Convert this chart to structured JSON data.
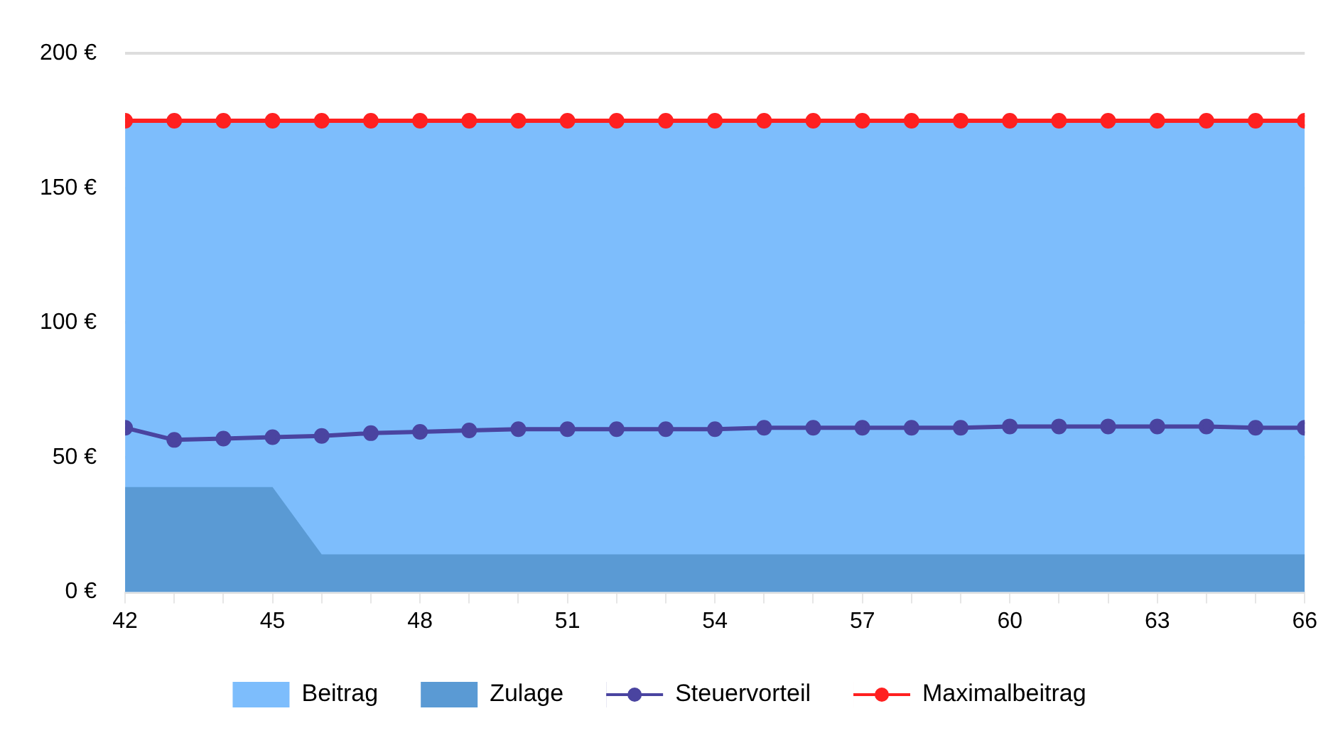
{
  "chart_data": {
    "type": "area",
    "x": [
      42,
      43,
      44,
      45,
      46,
      47,
      48,
      49,
      50,
      51,
      52,
      53,
      54,
      55,
      56,
      57,
      58,
      59,
      60,
      61,
      62,
      63,
      64,
      65,
      66
    ],
    "series": [
      {
        "name": "Beitrag",
        "marker": "none",
        "color": "#7dbdfc",
        "values": [
          175,
          175,
          175,
          175,
          175,
          175,
          175,
          175,
          175,
          175,
          175,
          175,
          175,
          175,
          175,
          175,
          175,
          175,
          175,
          175,
          175,
          175,
          175,
          175,
          175
        ]
      },
      {
        "name": "Zulage",
        "marker": "none",
        "color": "#5a9ad4",
        "values": [
          39,
          39,
          39,
          39,
          14,
          14,
          14,
          14,
          14,
          14,
          14,
          14,
          14,
          14,
          14,
          14,
          14,
          14,
          14,
          14,
          14,
          14,
          14,
          14,
          14
        ]
      },
      {
        "name": "Steuervorteil",
        "type": "line",
        "color": "#4a44a0",
        "values": [
          61,
          56.5,
          57,
          57.5,
          58,
          59,
          59.5,
          60,
          60.5,
          60.5,
          60.5,
          60.5,
          60.5,
          61,
          61,
          61,
          61,
          61,
          61.5,
          61.5,
          61.5,
          61.5,
          61.5,
          61,
          61
        ]
      },
      {
        "name": "Maximalbeitrag",
        "type": "line",
        "color": "#ff2020",
        "values": [
          175,
          175,
          175,
          175,
          175,
          175,
          175,
          175,
          175,
          175,
          175,
          175,
          175,
          175,
          175,
          175,
          175,
          175,
          175,
          175,
          175,
          175,
          175,
          175,
          175
        ]
      }
    ],
    "xlim": [
      42,
      66
    ],
    "xticks": [
      42,
      {
        "value": 43,
        "label": null
      },
      {
        "value": 44,
        "label": null
      },
      45,
      {
        "value": 46,
        "label": null
      },
      {
        "value": 47,
        "label": null
      },
      48,
      {
        "value": 49,
        "label": null
      },
      {
        "value": 50,
        "label": null
      },
      51,
      {
        "value": 52,
        "label": null
      },
      {
        "value": 53,
        "label": null
      },
      54,
      {
        "value": 55,
        "label": null
      },
      {
        "value": 56,
        "label": null
      },
      57,
      {
        "value": 58,
        "label": null
      },
      {
        "value": 59,
        "label": null
      },
      60,
      {
        "value": 61,
        "label": null
      },
      {
        "value": 62,
        "label": null
      },
      63,
      {
        "value": 64,
        "label": null
      },
      {
        "value": 65,
        "label": null
      },
      66
    ],
    "ylim": [
      0,
      200
    ],
    "yticks": [
      {
        "value": 0,
        "label": "0 €"
      },
      {
        "value": 50,
        "label": "50 €"
      },
      {
        "value": 100,
        "label": "100 €"
      },
      {
        "value": 150,
        "label": "150 €"
      },
      {
        "value": 200,
        "label": "200 €"
      }
    ],
    "grid": "y",
    "legend": "bottom",
    "marker": "circle"
  }
}
